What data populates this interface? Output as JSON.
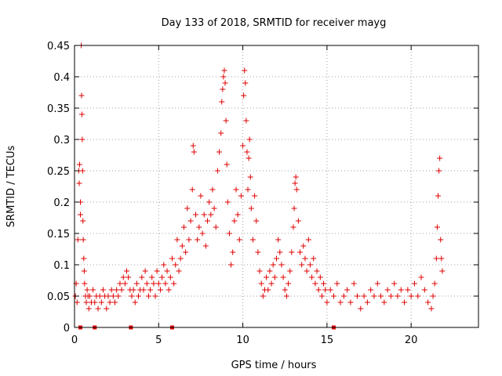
{
  "chart_data": {
    "type": "scatter",
    "title": "Day 133 of 2018, SRMTID for receiver mayg",
    "xlabel": "GPS time / hours",
    "ylabel": "SRMTID / TECUs",
    "xlim": [
      0,
      24
    ],
    "ylim": [
      0,
      0.45
    ],
    "xticks": [
      0,
      5,
      10,
      15,
      20
    ],
    "yticks": [
      0,
      0.05,
      0.1,
      0.15,
      0.2,
      0.25,
      0.3,
      0.35,
      0.4,
      0.45
    ],
    "xtick_labels": [
      "0",
      "5",
      "10",
      "15",
      "20"
    ],
    "ytick_labels": [
      "0",
      "0.05",
      "0.1",
      "0.15",
      "0.2",
      "0.25",
      "0.3",
      "0.35",
      "0.4",
      "0.45"
    ],
    "grid": true,
    "marker": "+",
    "color": "#e00000",
    "series": [
      {
        "name": "SRMTID",
        "points": [
          [
            0.05,
            0.05
          ],
          [
            0.1,
            0.07
          ],
          [
            0.15,
            0.04
          ],
          [
            0.2,
            0.14
          ],
          [
            0.25,
            0.25
          ],
          [
            0.28,
            0.23
          ],
          [
            0.3,
            0.26
          ],
          [
            0.35,
            0.2
          ],
          [
            0.35,
            0.18
          ],
          [
            0.4,
            0.45
          ],
          [
            0.42,
            0.37
          ],
          [
            0.44,
            0.34
          ],
          [
            0.46,
            0.3
          ],
          [
            0.48,
            0.25
          ],
          [
            0.5,
            0.17
          ],
          [
            0.52,
            0.14
          ],
          [
            0.55,
            0.11
          ],
          [
            0.58,
            0.09
          ],
          [
            0.6,
            0.07
          ],
          [
            0.65,
            0.05
          ],
          [
            0.7,
            0.04
          ],
          [
            0.75,
            0.06
          ],
          [
            0.8,
            0.05
          ],
          [
            0.85,
            0.03
          ],
          [
            0.9,
            0.05
          ],
          [
            1.0,
            0.04
          ],
          [
            1.1,
            0.06
          ],
          [
            1.2,
            0.04
          ],
          [
            1.3,
            0.05
          ],
          [
            1.4,
            0.03
          ],
          [
            1.5,
            0.05
          ],
          [
            1.6,
            0.04
          ],
          [
            1.7,
            0.06
          ],
          [
            1.8,
            0.05
          ],
          [
            1.9,
            0.03
          ],
          [
            2.0,
            0.05
          ],
          [
            2.1,
            0.04
          ],
          [
            2.2,
            0.06
          ],
          [
            2.3,
            0.05
          ],
          [
            2.4,
            0.04
          ],
          [
            2.5,
            0.06
          ],
          [
            2.6,
            0.05
          ],
          [
            2.7,
            0.07
          ],
          [
            2.8,
            0.06
          ],
          [
            2.9,
            0.08
          ],
          [
            3.0,
            0.07
          ],
          [
            3.1,
            0.09
          ],
          [
            3.2,
            0.08
          ],
          [
            3.3,
            0.06
          ],
          [
            3.4,
            0.05
          ],
          [
            3.5,
            0.06
          ],
          [
            3.6,
            0.04
          ],
          [
            3.7,
            0.07
          ],
          [
            3.8,
            0.05
          ],
          [
            3.9,
            0.06
          ],
          [
            4.0,
            0.08
          ],
          [
            4.1,
            0.06
          ],
          [
            4.2,
            0.09
          ],
          [
            4.3,
            0.07
          ],
          [
            4.4,
            0.05
          ],
          [
            4.5,
            0.06
          ],
          [
            4.6,
            0.08
          ],
          [
            4.7,
            0.07
          ],
          [
            4.8,
            0.05
          ],
          [
            4.9,
            0.09
          ],
          [
            5.0,
            0.07
          ],
          [
            5.1,
            0.06
          ],
          [
            5.2,
            0.08
          ],
          [
            5.3,
            0.1
          ],
          [
            5.4,
            0.07
          ],
          [
            5.5,
            0.09
          ],
          [
            5.6,
            0.06
          ],
          [
            5.7,
            0.08
          ],
          [
            5.8,
            0.11
          ],
          [
            5.9,
            0.07
          ],
          [
            6.0,
            0.1
          ],
          [
            6.1,
            0.14
          ],
          [
            6.2,
            0.09
          ],
          [
            6.3,
            0.11
          ],
          [
            6.4,
            0.13
          ],
          [
            6.5,
            0.16
          ],
          [
            6.6,
            0.12
          ],
          [
            6.7,
            0.19
          ],
          [
            6.8,
            0.14
          ],
          [
            6.9,
            0.17
          ],
          [
            7.0,
            0.22
          ],
          [
            7.05,
            0.29
          ],
          [
            7.1,
            0.28
          ],
          [
            7.2,
            0.18
          ],
          [
            7.3,
            0.14
          ],
          [
            7.4,
            0.16
          ],
          [
            7.5,
            0.21
          ],
          [
            7.6,
            0.15
          ],
          [
            7.7,
            0.18
          ],
          [
            7.8,
            0.13
          ],
          [
            7.9,
            0.17
          ],
          [
            8.0,
            0.2
          ],
          [
            8.1,
            0.18
          ],
          [
            8.2,
            0.22
          ],
          [
            8.3,
            0.19
          ],
          [
            8.4,
            0.16
          ],
          [
            8.5,
            0.25
          ],
          [
            8.6,
            0.28
          ],
          [
            8.7,
            0.31
          ],
          [
            8.75,
            0.36
          ],
          [
            8.8,
            0.38
          ],
          [
            8.85,
            0.4
          ],
          [
            8.9,
            0.41
          ],
          [
            8.95,
            0.39
          ],
          [
            9.0,
            0.33
          ],
          [
            9.05,
            0.26
          ],
          [
            9.1,
            0.2
          ],
          [
            9.2,
            0.15
          ],
          [
            9.3,
            0.1
          ],
          [
            9.4,
            0.12
          ],
          [
            9.5,
            0.17
          ],
          [
            9.6,
            0.22
          ],
          [
            9.7,
            0.18
          ],
          [
            9.8,
            0.14
          ],
          [
            9.9,
            0.21
          ],
          [
            10.0,
            0.29
          ],
          [
            10.05,
            0.37
          ],
          [
            10.1,
            0.41
          ],
          [
            10.15,
            0.39
          ],
          [
            10.2,
            0.33
          ],
          [
            10.25,
            0.28
          ],
          [
            10.3,
            0.22
          ],
          [
            10.35,
            0.27
          ],
          [
            10.4,
            0.3
          ],
          [
            10.45,
            0.24
          ],
          [
            10.5,
            0.19
          ],
          [
            10.6,
            0.14
          ],
          [
            10.7,
            0.21
          ],
          [
            10.8,
            0.17
          ],
          [
            10.9,
            0.12
          ],
          [
            11.0,
            0.09
          ],
          [
            11.1,
            0.07
          ],
          [
            11.2,
            0.05
          ],
          [
            11.3,
            0.06
          ],
          [
            11.4,
            0.08
          ],
          [
            11.5,
            0.06
          ],
          [
            11.6,
            0.09
          ],
          [
            11.7,
            0.07
          ],
          [
            11.8,
            0.1
          ],
          [
            11.9,
            0.08
          ],
          [
            12.0,
            0.11
          ],
          [
            12.1,
            0.14
          ],
          [
            12.2,
            0.12
          ],
          [
            12.3,
            0.1
          ],
          [
            12.4,
            0.08
          ],
          [
            12.5,
            0.06
          ],
          [
            12.6,
            0.05
          ],
          [
            12.7,
            0.07
          ],
          [
            12.8,
            0.09
          ],
          [
            12.9,
            0.12
          ],
          [
            13.0,
            0.16
          ],
          [
            13.05,
            0.19
          ],
          [
            13.1,
            0.23
          ],
          [
            13.15,
            0.24
          ],
          [
            13.2,
            0.22
          ],
          [
            13.3,
            0.17
          ],
          [
            13.4,
            0.12
          ],
          [
            13.5,
            0.1
          ],
          [
            13.6,
            0.13
          ],
          [
            13.7,
            0.11
          ],
          [
            13.8,
            0.09
          ],
          [
            13.9,
            0.14
          ],
          [
            14.0,
            0.1
          ],
          [
            14.1,
            0.08
          ],
          [
            14.2,
            0.11
          ],
          [
            14.3,
            0.07
          ],
          [
            14.4,
            0.09
          ],
          [
            14.5,
            0.06
          ],
          [
            14.6,
            0.08
          ],
          [
            14.7,
            0.05
          ],
          [
            14.8,
            0.07
          ],
          [
            14.9,
            0.06
          ],
          [
            15.0,
            0.04
          ],
          [
            15.2,
            0.06
          ],
          [
            15.4,
            0.05
          ],
          [
            15.6,
            0.07
          ],
          [
            15.8,
            0.04
          ],
          [
            16.0,
            0.05
          ],
          [
            16.2,
            0.06
          ],
          [
            16.4,
            0.04
          ],
          [
            16.6,
            0.07
          ],
          [
            16.8,
            0.05
          ],
          [
            17.0,
            0.03
          ],
          [
            17.2,
            0.05
          ],
          [
            17.4,
            0.04
          ],
          [
            17.6,
            0.06
          ],
          [
            17.8,
            0.05
          ],
          [
            18.0,
            0.07
          ],
          [
            18.2,
            0.05
          ],
          [
            18.4,
            0.04
          ],
          [
            18.6,
            0.06
          ],
          [
            18.8,
            0.05
          ],
          [
            19.0,
            0.07
          ],
          [
            19.2,
            0.05
          ],
          [
            19.4,
            0.06
          ],
          [
            19.6,
            0.04
          ],
          [
            19.8,
            0.06
          ],
          [
            20.0,
            0.05
          ],
          [
            20.2,
            0.07
          ],
          [
            20.4,
            0.05
          ],
          [
            20.6,
            0.08
          ],
          [
            20.8,
            0.06
          ],
          [
            21.0,
            0.04
          ],
          [
            21.2,
            0.03
          ],
          [
            21.3,
            0.05
          ],
          [
            21.4,
            0.07
          ],
          [
            21.5,
            0.11
          ],
          [
            21.55,
            0.16
          ],
          [
            21.6,
            0.21
          ],
          [
            21.65,
            0.25
          ],
          [
            21.7,
            0.27
          ],
          [
            21.75,
            0.14
          ],
          [
            21.8,
            0.11
          ],
          [
            21.85,
            0.09
          ]
        ]
      }
    ],
    "baseline_markers_x": [
      0.35,
      1.2,
      3.35,
      5.8,
      15.4
    ]
  }
}
